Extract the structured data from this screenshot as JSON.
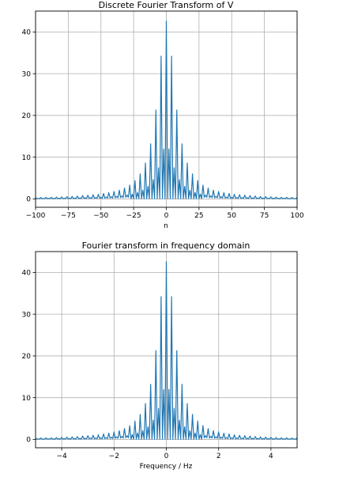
{
  "chart_data": [
    {
      "type": "line",
      "title": "Discrete Fourier Transform of V",
      "xlabel": "n",
      "ylabel": "",
      "xlim": [
        -100,
        100
      ],
      "ylim": [
        -2,
        45
      ],
      "grid": true,
      "xticks": [
        -100,
        -75,
        -50,
        -25,
        0,
        25,
        50,
        75,
        100
      ],
      "xtick_labels": [
        "−100",
        "−75",
        "−50",
        "−25",
        "0",
        "25",
        "50",
        "75",
        "100"
      ],
      "yticks": [
        0,
        10,
        20,
        30,
        40
      ],
      "ytick_labels": [
        "0",
        "10",
        "20",
        "30",
        "40"
      ],
      "color": "#1f77b4",
      "series": [
        {
          "peaks": {
            "0": 42.6,
            "4": 34.2,
            "-4": 34.2,
            "8": 21.3,
            "-8": 21.3,
            "12": 13.2,
            "-12": 13.2,
            "16": 8.6,
            "-16": 8.6,
            "20": 6.0,
            "-20": 6.0,
            "24": 4.4,
            "-24": 4.4,
            "28": 3.3,
            "-28": 3.3,
            "32": 2.6,
            "-32": 2.6,
            "36": 2.1,
            "-36": 2.1,
            "40": 1.8,
            "-40": 1.8,
            "44": 1.5,
            "-44": 1.5,
            "48": 1.3,
            "-48": 1.3,
            "52": 1.1,
            "-52": 1.1,
            "56": 1.0,
            "-56": 1.0,
            "60": 0.9,
            "-60": 0.9,
            "64": 0.8,
            "-64": 0.8,
            "68": 0.7,
            "-68": 0.7,
            "72": 0.6,
            "-72": 0.6,
            "76": 0.55,
            "-76": 0.55,
            "80": 0.5,
            "-80": 0.5,
            "84": 0.45,
            "-84": 0.45,
            "88": 0.4,
            "-88": 0.4,
            "92": 0.4,
            "-92": 0.4,
            "96": 0.35,
            "-96": 0.35,
            "100": 0.35,
            "-100": 0.35
          }
        }
      ]
    },
    {
      "type": "line",
      "title": "Fourier transform in frequency domain",
      "xlabel": "Frequency / Hz",
      "ylabel": "",
      "xlim": [
        -5,
        5
      ],
      "ylim": [
        -2,
        45
      ],
      "grid": true,
      "xticks": [
        -4,
        -2,
        0,
        2,
        4
      ],
      "xtick_labels": [
        "−4",
        "−2",
        "0",
        "2",
        "4"
      ],
      "yticks": [
        0,
        10,
        20,
        30,
        40
      ],
      "ytick_labels": [
        "0",
        "10",
        "20",
        "30",
        "40"
      ],
      "color": "#1f77b4",
      "series": [
        {
          "peaks": {
            "0": 42.6,
            "0.2": 34.2,
            "-0.2": 34.2,
            "0.4": 21.3,
            "-0.4": 21.3,
            "0.6": 13.2,
            "-0.6": 13.2,
            "0.8": 8.6,
            "-0.8": 8.6,
            "1.0": 6.0,
            "-1.0": 6.0,
            "1.2": 4.4,
            "-1.2": 4.4,
            "1.4": 3.3,
            "-1.4": 3.3,
            "1.6": 2.6,
            "-1.6": 2.6,
            "1.8": 2.1,
            "-1.8": 2.1,
            "2.0": 1.8,
            "-2.0": 1.8,
            "2.2": 1.5,
            "-2.2": 1.5,
            "2.4": 1.3,
            "-2.4": 1.3,
            "2.6": 1.1,
            "-2.6": 1.1,
            "2.8": 1.0,
            "-2.8": 1.0,
            "3.0": 0.9,
            "-3.0": 0.9,
            "3.2": 0.8,
            "-3.2": 0.8,
            "3.4": 0.7,
            "-3.4": 0.7,
            "3.6": 0.6,
            "-3.6": 0.6,
            "3.8": 0.55,
            "-3.8": 0.55,
            "4.0": 0.5,
            "-4.0": 0.5,
            "4.2": 0.45,
            "-4.2": 0.45,
            "4.4": 0.4,
            "-4.4": 0.4,
            "4.6": 0.4,
            "-4.6": 0.4,
            "4.8": 0.35,
            "-4.8": 0.35,
            "5.0": 0.35,
            "-5.0": 0.35
          }
        }
      ]
    }
  ]
}
